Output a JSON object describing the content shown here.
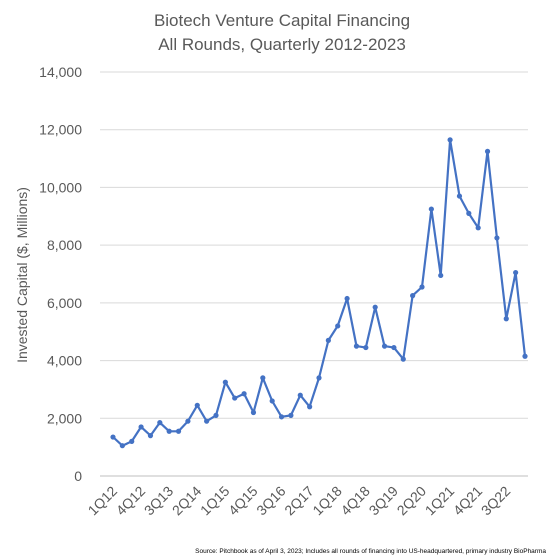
{
  "chart_data": {
    "type": "line",
    "title": [
      "Biotech Venture Capital Financing",
      "All Rounds, Quarterly 2012-2023"
    ],
    "xlabel": "",
    "ylabel": "Invested Capital ($, Millions)",
    "ylim": [
      0,
      14000
    ],
    "yticks": [
      0,
      2000,
      4000,
      6000,
      8000,
      10000,
      12000,
      14000
    ],
    "ytick_labels": [
      "0",
      "2,000",
      "4,000",
      "6,000",
      "8,000",
      "10,000",
      "12,000",
      "14,000"
    ],
    "grid": true,
    "legend": "none",
    "color": "#4472C4",
    "categories": [
      "1Q12",
      "2Q12",
      "3Q12",
      "4Q12",
      "1Q13",
      "2Q13",
      "3Q13",
      "4Q13",
      "1Q14",
      "2Q14",
      "3Q14",
      "4Q14",
      "1Q15",
      "2Q15",
      "3Q15",
      "4Q15",
      "1Q16",
      "2Q16",
      "3Q16",
      "4Q16",
      "1Q17",
      "2Q17",
      "3Q17",
      "4Q17",
      "1Q18",
      "2Q18",
      "3Q18",
      "4Q18",
      "1Q19",
      "2Q19",
      "3Q19",
      "4Q19",
      "1Q20",
      "2Q20",
      "3Q20",
      "4Q20",
      "1Q21",
      "2Q21",
      "3Q21",
      "4Q21",
      "1Q22",
      "2Q22",
      "3Q22",
      "4Q22",
      "1Q23"
    ],
    "xtick_labels": [
      "1Q12",
      "4Q12",
      "3Q13",
      "2Q14",
      "1Q15",
      "4Q15",
      "3Q16",
      "2Q17",
      "1Q18",
      "4Q18",
      "3Q19",
      "2Q20",
      "1Q21",
      "4Q21",
      "3Q22"
    ],
    "xtick_indices": [
      0,
      3,
      6,
      9,
      12,
      15,
      18,
      21,
      24,
      27,
      30,
      33,
      36,
      39,
      42
    ],
    "values": [
      1350,
      1050,
      1200,
      1700,
      1400,
      1850,
      1550,
      1550,
      1900,
      2450,
      1900,
      2100,
      3250,
      2700,
      2850,
      2200,
      3400,
      2600,
      2050,
      2100,
      2800,
      2400,
      3400,
      4700,
      5200,
      6150,
      4500,
      4450,
      5850,
      4500,
      4450,
      4050,
      6250,
      6550,
      9250,
      6950,
      11650,
      9700,
      9100,
      8600,
      11250,
      8250,
      5450,
      7050,
      4150
    ]
  },
  "source_note": "Source: Pitchbook as of April 3, 2023; Includes all rounds of financing into US-headquartered, primary industry BioPharma"
}
